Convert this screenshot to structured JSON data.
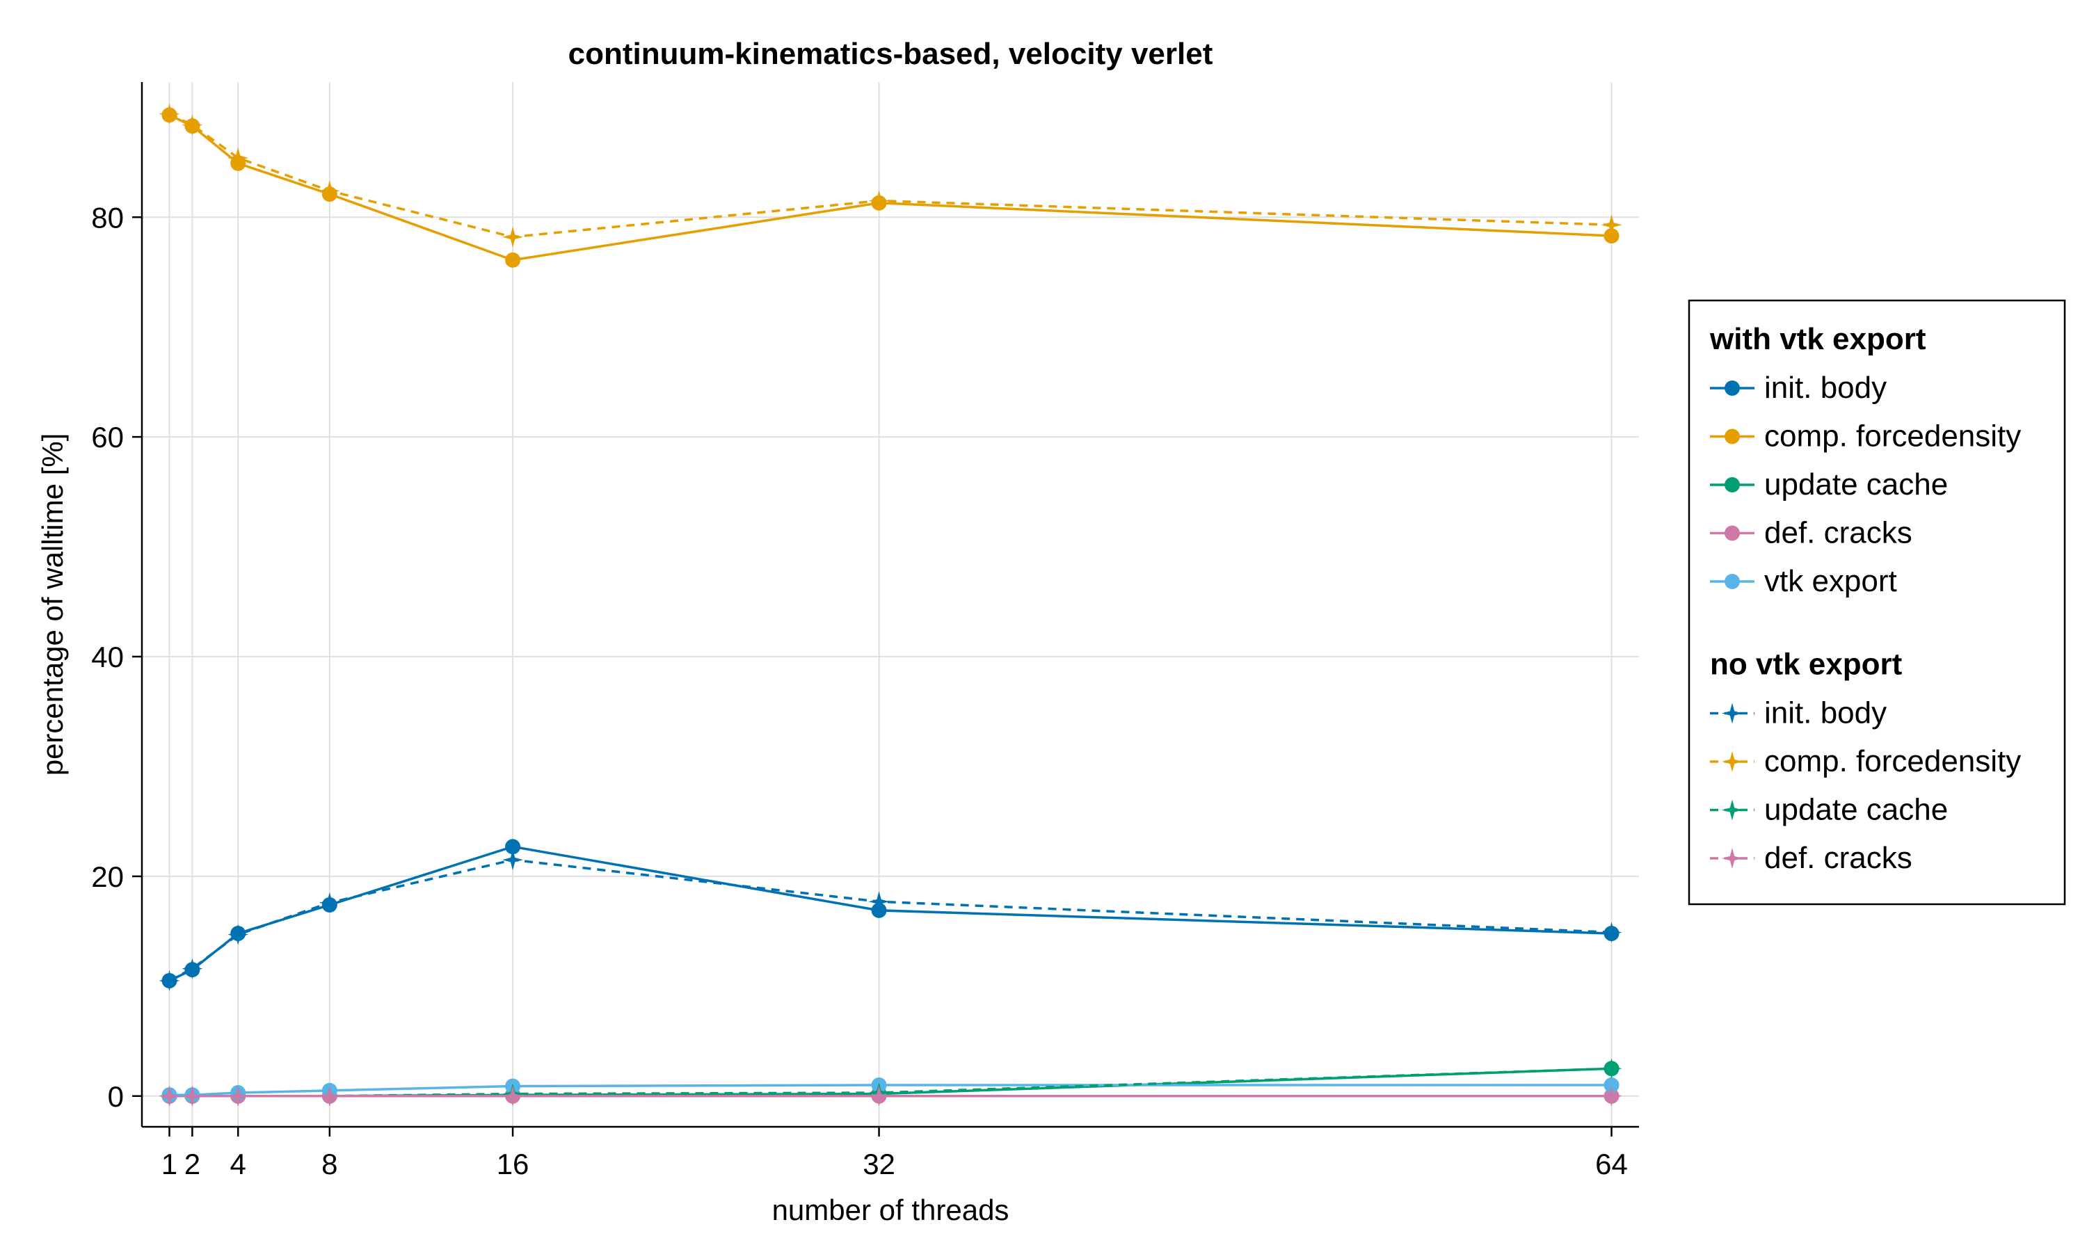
{
  "chart_data": {
    "type": "line",
    "title": "continuum-kinematics-based, velocity verlet",
    "xlabel": "number of threads",
    "ylabel": "percentage of walltime [%]",
    "x": [
      1,
      2,
      4,
      8,
      16,
      32,
      64
    ],
    "xticks": [
      1,
      2,
      4,
      8,
      16,
      32,
      64
    ],
    "yticks": [
      0,
      20,
      40,
      60,
      80
    ],
    "xlim": [
      -0.2,
      65.2
    ],
    "ylim": [
      -2.8,
      92.3
    ],
    "grid": true,
    "legend_position": "right",
    "groups": [
      {
        "title": "with vtk export",
        "line_style": "solid",
        "marker": "circle",
        "series": [
          {
            "name": "init. body",
            "color": "#0072b2",
            "values": [
              10.5,
              11.5,
              14.8,
              17.4,
              22.7,
              16.9,
              14.8
            ]
          },
          {
            "name": "comp. forcedensity",
            "color": "#e69f00",
            "values": [
              89.3,
              88.3,
              84.9,
              82.1,
              76.1,
              81.3,
              78.3
            ]
          },
          {
            "name": "update cache",
            "color": "#009e73",
            "values": [
              0.0,
              0.0,
              0.0,
              0.0,
              0.1,
              0.2,
              2.5
            ]
          },
          {
            "name": "def. cracks",
            "color": "#cc79a7",
            "values": [
              0.0,
              0.0,
              0.0,
              0.0,
              0.0,
              0.0,
              0.0
            ]
          },
          {
            "name": "vtk export",
            "color": "#56b4e9",
            "values": [
              0.1,
              0.1,
              0.3,
              0.5,
              0.9,
              1.0,
              1.0
            ]
          }
        ]
      },
      {
        "title": "no vtk export",
        "line_style": "dashed",
        "marker": "star",
        "series": [
          {
            "name": "init. body",
            "color": "#0072b2",
            "values": [
              10.5,
              11.6,
              14.7,
              17.6,
              21.5,
              17.7,
              14.9
            ]
          },
          {
            "name": "comp. forcedensity",
            "color": "#e69f00",
            "values": [
              89.4,
              88.4,
              85.4,
              82.4,
              78.2,
              81.5,
              79.3
            ]
          },
          {
            "name": "update cache",
            "color": "#009e73",
            "values": [
              0.0,
              0.0,
              0.0,
              0.0,
              0.2,
              0.3,
              2.5
            ]
          },
          {
            "name": "def. cracks",
            "color": "#cc79a7",
            "values": [
              0.0,
              0.0,
              0.0,
              0.0,
              0.0,
              0.0,
              0.0
            ]
          }
        ]
      }
    ]
  }
}
